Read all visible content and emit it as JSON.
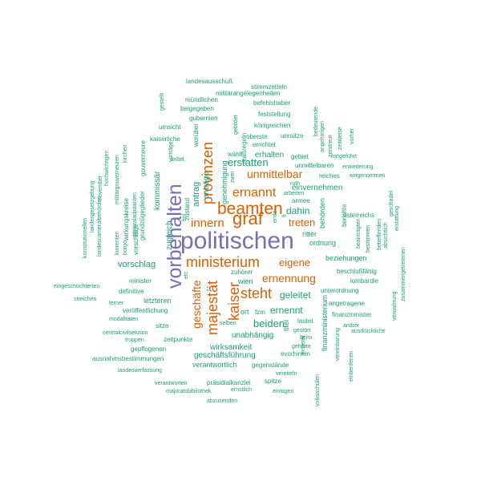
{
  "colors": {
    "large": "#7570b3",
    "medium": "#d95f02",
    "small": "#1b9e77"
  },
  "words": {
    "w0": "politischen",
    "w1": "vorbehalten",
    "w2": "ministerium",
    "w3": "beamten",
    "w4": "graf",
    "w5": "provinzen",
    "w6": "majestät",
    "w7": "kaiser",
    "w8": "steht",
    "w9": "ernannt",
    "w10": "innern",
    "w11": "unmittelbar",
    "w12": "geschäfte",
    "w13": "ernennung",
    "w14": "eigene",
    "w15": "treten",
    "w16": "erstatten",
    "w17": "dahin",
    "w18": "geleitet",
    "w19": "beiden",
    "w20": "ernennt",
    "w21": "antrag",
    "w22": "zugleich",
    "w23": "kommissär",
    "w24": "vorschlag",
    "w25": "verordnungen",
    "w26": "landesausschuß",
    "w27": "stimmzetteln",
    "w28": "militärangelegenheiten",
    "w29": "mündlichen",
    "w30": "befehlshaber",
    "w31": "beigegeben",
    "w32": "feststellung",
    "w33": "gubernien",
    "w34": "königreichen",
    "w35": "umsicht",
    "w36": "oberste",
    "w37": "unnütze",
    "w38": "kaiserliche",
    "w39": "errichtet",
    "w40": "erhalten",
    "w41": "gebiet",
    "w42": "unmittelbaren",
    "w43": "wählt",
    "w44": "leitet",
    "w45": "genehmigung",
    "w46": "anträge",
    "w47": "einvernehmen",
    "w48": "reiches",
    "w49": "eingenommen",
    "w50": "behörden",
    "w51": "berichte",
    "w52": "ordnung",
    "w53": "ritter",
    "w54": "beziehungen",
    "w55": "beschlußfähig",
    "w56": "lombardie",
    "w57": "minister",
    "w58": "definitive",
    "w59": "ferner",
    "w60": "eingeschüchterten",
    "w61": "streichen",
    "w62": "wien",
    "w63": "zuhörer",
    "w64": "unterordnung",
    "w65": "letzteren",
    "w66": "veröffentlichung",
    "w67": "modalitäten",
    "w68": "centralcivilsekzion",
    "w69": "sitze",
    "w70": "ort",
    "w71": "fzm",
    "w72": "unabhängig",
    "w73": "angetragene",
    "w74": "finanzminister",
    "w75": "wirksamkeit",
    "w76": "geschäftsführung",
    "w77": "statthalterschaft",
    "w78": "verantwortlich",
    "w79": "gegenstände",
    "w80": "präsidialkanzlei",
    "w81": "spitze",
    "w82": "majoratsbibliothek",
    "w83": "ernstlich",
    "w84": "einlagen",
    "w85": "abzusenden",
    "w86": "verantworten",
    "w87": "landesverfassung",
    "w88": "ausnahmsbestimmungen",
    "w89": "gepflogenen",
    "w90": "truppen",
    "w91": "zeitpunkte",
    "w92": "selben",
    "w93": "lautet",
    "w94": "gestört",
    "w95": "beim",
    "w96": "gehörte",
    "w97": "evorhinein",
    "w98": "vereinbarung",
    "w99": "andrer",
    "w100": "ausdrückliche",
    "w101": "vereiteln",
    "w102": "volksschulen",
    "w103": "finanzministerium",
    "w104": "titel",
    "w105": "ersterer",
    "w106": "einbenfenen",
    "w107": "verwahrung",
    "w108": "zusammengetretenen",
    "w109": "geschadet",
    "w110": "erstattung",
    "w111": "absichtlich",
    "w112": "betreffenden",
    "w113": "bestimmen",
    "w114": "beantragten",
    "w115": "österreichs",
    "w116": "fortgeführt",
    "w117": "erwiederung",
    "w118": "zeitweise",
    "w119": "vorher",
    "w120": "angehörigen",
    "w121": "zerstreut",
    "w122": "bedeutende",
    "w123": "arbeiten",
    "w124": "armee",
    "w125": "roth",
    "w126": "ende",
    "w127": "fl",
    "w128": "gebildet",
    "w129": "maßregeln",
    "w130": "zwei",
    "w131": "worüber",
    "w132": "vorträge",
    "w133": "gestellt",
    "w134": "zustand",
    "w135": "fml",
    "w136": "etc",
    "w137": "hochwichtigen",
    "w138": "militärgouverneuren",
    "w139": "kirchen",
    "w140": "gouverneure",
    "w141": "grundzügeglieder",
    "w142": "kommissär",
    "w143": "vorschläge",
    "w144": "wirkungskreise",
    "w145": "generaladjutanten",
    "w146": "landescameralbehörden",
    "w147": "landesgesetzgebung",
    "w148": "konstitutionellen",
    "w149": "november",
    "w150": "kurrenten",
    "w151": "borgo"
  }
}
